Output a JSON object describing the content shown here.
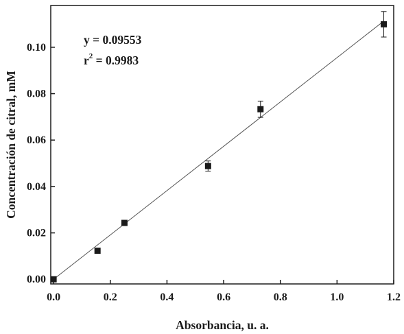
{
  "chart_data": {
    "type": "scatter",
    "xlabel": "Absorbancia, u. a.",
    "ylabel": "Concentración de citral, mM",
    "xlim": [
      -0.01,
      1.2
    ],
    "ylim": [
      -0.002,
      0.118
    ],
    "xticks": [
      0.0,
      0.2,
      0.4,
      0.6,
      0.8,
      1.0,
      1.2
    ],
    "xtick_labels": [
      "0.0",
      "0.2",
      "0.4",
      "0.6",
      "0.8",
      "1.0",
      "1.2"
    ],
    "yticks": [
      0.0,
      0.02,
      0.04,
      0.06,
      0.08,
      0.1
    ],
    "ytick_labels": [
      "0.00",
      "0.02",
      "0.04",
      "0.06",
      "0.08",
      "0.10"
    ],
    "grid": false,
    "series": [
      {
        "x": [
          0.0,
          0.155,
          0.25,
          0.545,
          0.73,
          1.165
        ],
        "y": [
          0.0,
          0.0123,
          0.0243,
          0.0488,
          0.0733,
          0.1099
        ],
        "yerr": [
          0.0,
          0.0,
          0.0,
          0.0022,
          0.0035,
          0.0055
        ],
        "marker": "square",
        "color": "#1a1a1a"
      }
    ],
    "fit_line": {
      "slope": 0.09553,
      "intercept": 0.0,
      "x_range": [
        0.0,
        1.165
      ],
      "color": "#555555"
    },
    "annotations": {
      "equation": "y = 0.09553",
      "r2_base": "r",
      "r2_sup": "2",
      "r2_rest": " = 0.9983"
    }
  }
}
